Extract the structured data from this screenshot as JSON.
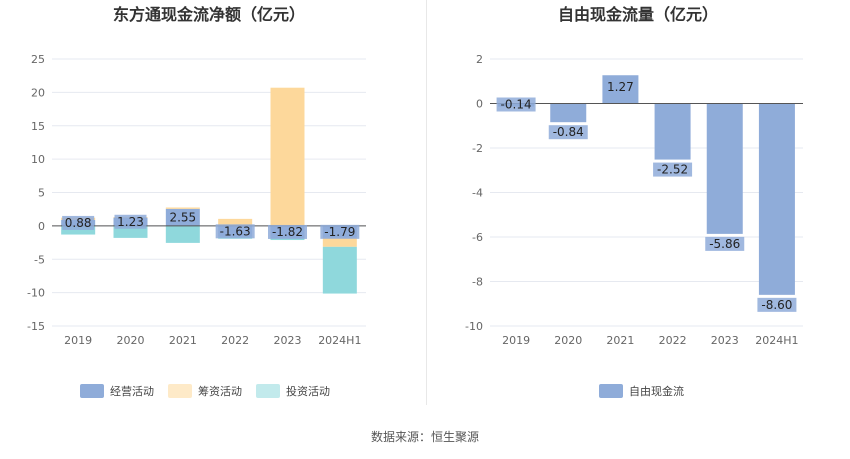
{
  "chart_data": [
    {
      "type": "bar",
      "stacked": true,
      "title": "东方通现金流净额（亿元）",
      "categories": [
        "2019",
        "2020",
        "2021",
        "2022",
        "2023",
        "2024H1"
      ],
      "ylim": [
        -15,
        25
      ],
      "yticks": [
        "25",
        "20",
        "15",
        "10",
        "5",
        "0",
        "-5",
        "-10",
        "-15"
      ],
      "grid": true,
      "legend_position": "bottom",
      "series": [
        {
          "name": "经营活动",
          "color": "#8facd9",
          "values": [
            0.88,
            1.23,
            2.55,
            -1.63,
            -1.82,
            -1.79
          ],
          "labels": [
            "0.88",
            "1.23",
            "2.55",
            "-1.63",
            "-1.82",
            "-1.79"
          ]
        },
        {
          "name": "筹资活动",
          "color": "#fdd89b",
          "values": [
            0.35,
            0.1,
            0.2,
            1.05,
            20.7,
            -1.35
          ]
        },
        {
          "name": "投资活动",
          "color": "#8fd8dc",
          "values": [
            -1.3,
            -1.8,
            -2.55,
            -0.3,
            -0.3,
            -7.0
          ]
        }
      ]
    },
    {
      "type": "bar",
      "title": "自由现金流量（亿元）",
      "categories": [
        "2019",
        "2020",
        "2021",
        "2022",
        "2023",
        "2024H1"
      ],
      "ylim": [
        -10,
        2
      ],
      "yticks": [
        "2",
        "0",
        "-2",
        "-4",
        "-6",
        "-8",
        "-10"
      ],
      "grid": true,
      "legend_position": "bottom",
      "series": [
        {
          "name": "自由现金流",
          "color": "#8facd9",
          "values": [
            -0.14,
            -0.84,
            1.27,
            -2.52,
            -5.86,
            -8.6
          ],
          "labels": [
            "-0.14",
            "-0.84",
            "1.27",
            "-2.52",
            "-5.86",
            "-8.60"
          ]
        }
      ]
    }
  ],
  "footer": {
    "source": "数据来源：恒生聚源"
  }
}
